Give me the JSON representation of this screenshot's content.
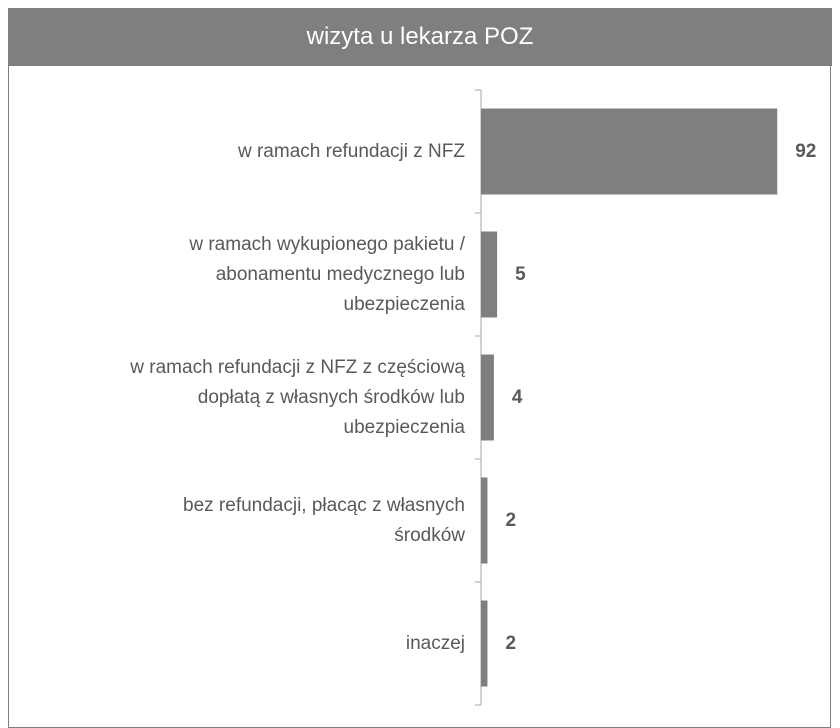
{
  "chart_data": {
    "type": "bar",
    "orientation": "horizontal",
    "title": "wizyta u lekarza POZ",
    "categories": [
      "w ramach refundacji z NFZ",
      "w ramach wykupionego pakietu /\nabonamentu medycznego lub\nubezpieczenia",
      "w ramach refundacji z NFZ z częściową\ndopłatą z własnych środków lub\nubezpieczenia",
      "bez refundacji, płacąc z własnych\nśrodków",
      "inaczej"
    ],
    "values": [
      92,
      5,
      4,
      2,
      2
    ],
    "color": "#7f7f7f",
    "xlim": [
      0,
      100
    ]
  }
}
